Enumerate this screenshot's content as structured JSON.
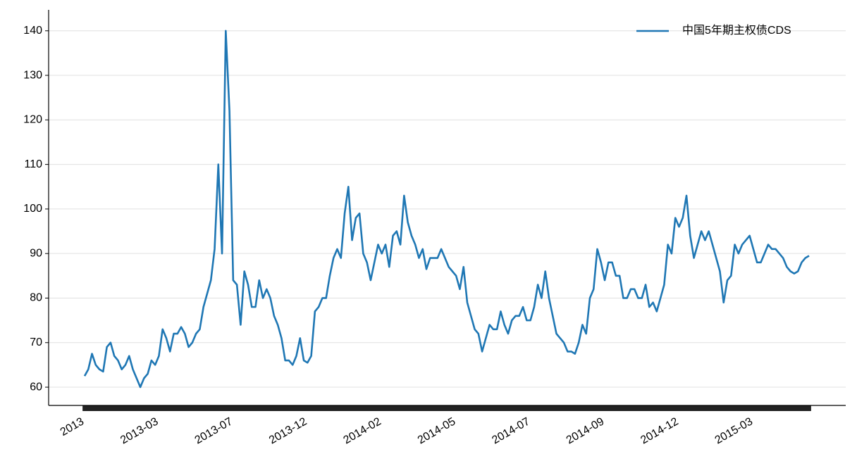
{
  "chart_data": {
    "type": "line",
    "categories": [
      "2013",
      null,
      null,
      null,
      null,
      null,
      null,
      null,
      null,
      null,
      null,
      null,
      null,
      null,
      null,
      null,
      null,
      null,
      null,
      null,
      "2013-03",
      null,
      null,
      null,
      null,
      null,
      null,
      null,
      null,
      null,
      null,
      null,
      null,
      null,
      null,
      null,
      null,
      null,
      null,
      null,
      "2013-07",
      null,
      null,
      null,
      null,
      null,
      null,
      null,
      null,
      null,
      null,
      null,
      null,
      null,
      null,
      null,
      null,
      null,
      null,
      null,
      "2013-12",
      null,
      null,
      null,
      null,
      null,
      null,
      null,
      null,
      null,
      null,
      null,
      null,
      null,
      null,
      null,
      null,
      null,
      null,
      null,
      "2014-02",
      null,
      null,
      null,
      null,
      null,
      null,
      null,
      null,
      null,
      null,
      null,
      null,
      null,
      null,
      null,
      null,
      null,
      null,
      null,
      "2014-05",
      null,
      null,
      null,
      null,
      null,
      null,
      null,
      null,
      null,
      null,
      null,
      null,
      null,
      null,
      null,
      null,
      null,
      null,
      null,
      "2014-07",
      null,
      null,
      null,
      null,
      null,
      null,
      null,
      null,
      null,
      null,
      null,
      null,
      null,
      null,
      null,
      null,
      null,
      null,
      null,
      "2014-09",
      null,
      null,
      null,
      null,
      null,
      null,
      null,
      null,
      null,
      null,
      null,
      null,
      null,
      null,
      null,
      null,
      null,
      null,
      null,
      "2014-12",
      null,
      null,
      null,
      null,
      null,
      null,
      null,
      null,
      null,
      null,
      null,
      null,
      null,
      null,
      null,
      null,
      null,
      null,
      null,
      "2015-03",
      null,
      null,
      null,
      null,
      null,
      null,
      null,
      null,
      null,
      null,
      null,
      null,
      null,
      null,
      null
    ],
    "series": [
      {
        "name": "中国5年期主权债CDS",
        "color": "#1f77b4",
        "values": [
          62.5,
          64,
          67.5,
          65,
          64,
          63.5,
          69,
          70,
          67,
          66,
          64,
          65,
          67,
          64,
          62,
          60,
          62,
          63,
          66,
          65,
          67,
          73,
          71,
          68,
          72,
          72,
          73.5,
          72,
          69,
          70,
          72,
          73,
          78,
          81,
          84,
          91,
          110,
          90,
          140,
          122,
          84,
          83,
          74,
          86,
          83,
          78,
          78,
          84,
          80,
          82,
          80,
          76,
          74,
          71,
          66,
          66,
          65,
          67,
          71,
          66,
          65.5,
          67,
          77,
          78,
          80,
          80,
          85,
          89,
          91,
          89,
          99,
          105,
          93,
          98,
          99,
          90,
          88,
          84,
          88,
          92,
          90,
          92,
          87,
          94,
          95,
          92,
          103,
          97,
          94,
          92,
          89,
          91,
          86.5,
          89,
          89,
          89,
          91,
          89,
          87,
          86,
          85,
          82,
          87,
          79,
          76,
          73,
          72,
          68,
          71,
          74,
          73,
          73,
          77,
          74,
          72,
          75,
          76,
          76,
          78,
          75,
          75,
          78,
          83,
          80,
          86,
          80,
          76,
          72,
          71,
          70,
          68,
          68,
          67.5,
          70,
          74,
          72,
          80,
          82,
          91,
          88,
          84,
          88,
          88,
          85,
          85,
          80,
          80,
          82,
          82,
          80,
          80,
          83,
          78,
          79,
          77,
          80,
          83,
          92,
          90,
          98,
          96,
          98,
          103,
          94,
          89,
          92,
          95,
          93,
          95,
          92,
          89,
          86,
          79,
          84,
          85,
          92,
          90,
          92,
          93,
          94,
          91,
          88,
          88,
          90,
          92,
          91,
          91,
          90,
          89,
          87,
          86,
          85.5,
          86,
          88,
          89,
          89.5
        ]
      }
    ],
    "ylim": [
      55.9,
      144.7
    ],
    "yticks": [
      60,
      70,
      80,
      90,
      100,
      110,
      120,
      130,
      140
    ],
    "grid": true,
    "legend": "upper right"
  }
}
